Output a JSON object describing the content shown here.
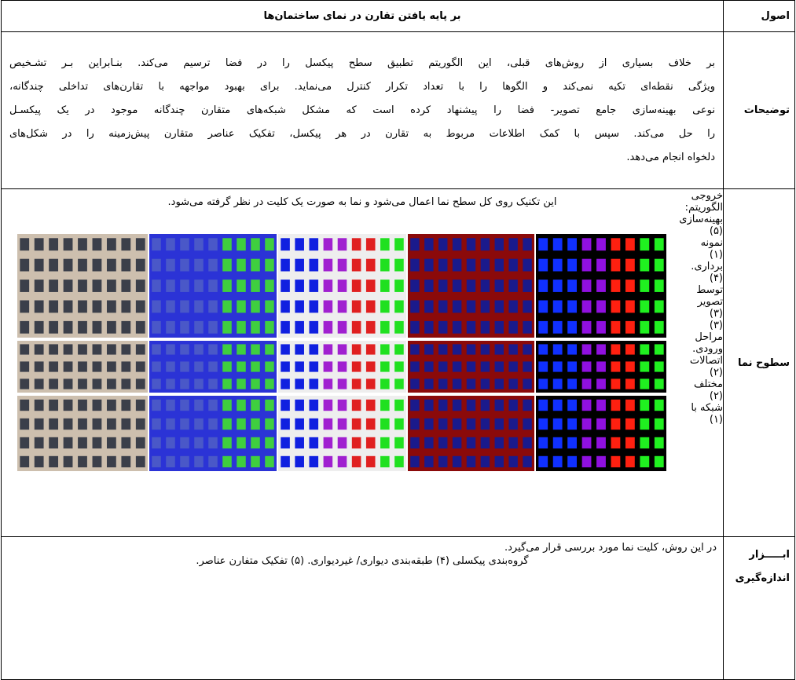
{
  "header": {
    "label": "اصول",
    "title": "بر پایه یافتن تقارن در نمای ساختمان‌ها"
  },
  "description": {
    "label": "توضیحات",
    "lines": [
      "بر خلاف بسیاری از روش‌های قبلی، این الگوریتم تطبیق سطح پیکسل را در فضا ترسیم می‌کند. بنـابراین بـر تشـخیص",
      "ویژگی نقطه‌ای تکیه نمی‌کند و الگوها را با تعداد تکرار کنترل می‌نماید. برای بهبود مواجهه با تقارن‌های تداخلی چندگانه،",
      "نوعی بهینه‌سازی جامع تصویر- فضا را پیشنهاد کرده است که مشکل شبکه‌های متقارن چندگانه موجود در یک پیکسـل",
      "را حل می‌کند. سپس با کمک اطلاعات مربوط به تقارن در هر پیکسل، تفکیک عناصر متقارن پیش‌زمینه را در شکل‌های",
      "دلخواه انجام می‌دهد."
    ]
  },
  "facade": {
    "label": "سطوح نما",
    "intro": "این تکنیک روی کل سطح نما اعمال می‌شود و نما به صورت یک کلیت در نظر گرفته می‌شود.",
    "fragments": [
      [
        "خروجی",
        "الگوریتم:",
        "بهینه‌سازی"
      ],
      [
        "(۵)"
      ],
      [
        "نمونه",
        "(۱)",
        "برداری."
      ],
      [
        "(۴)"
      ],
      [
        "توسط",
        "تصویر",
        "(۳)"
      ],
      [
        "(۳)"
      ],
      [
        "مراحل",
        "ورودی.",
        "اتصالات"
      ],
      [
        "(۲)"
      ],
      [
        "مختلف",
        "(۲)",
        "شبکه با"
      ],
      [
        "(۱)"
      ]
    ],
    "caption_end": "گروه‌بندی پیکسلی (۴) طبقه‌بندی دیواری/ غیردیواری. (۵) تفکیک متفارن عناصر."
  },
  "tools": {
    "label": "ابـــــزار اندازه‌گیری",
    "text": "در این روش، کلیت نما مورد بررسی قرار می‌گیرد."
  }
}
